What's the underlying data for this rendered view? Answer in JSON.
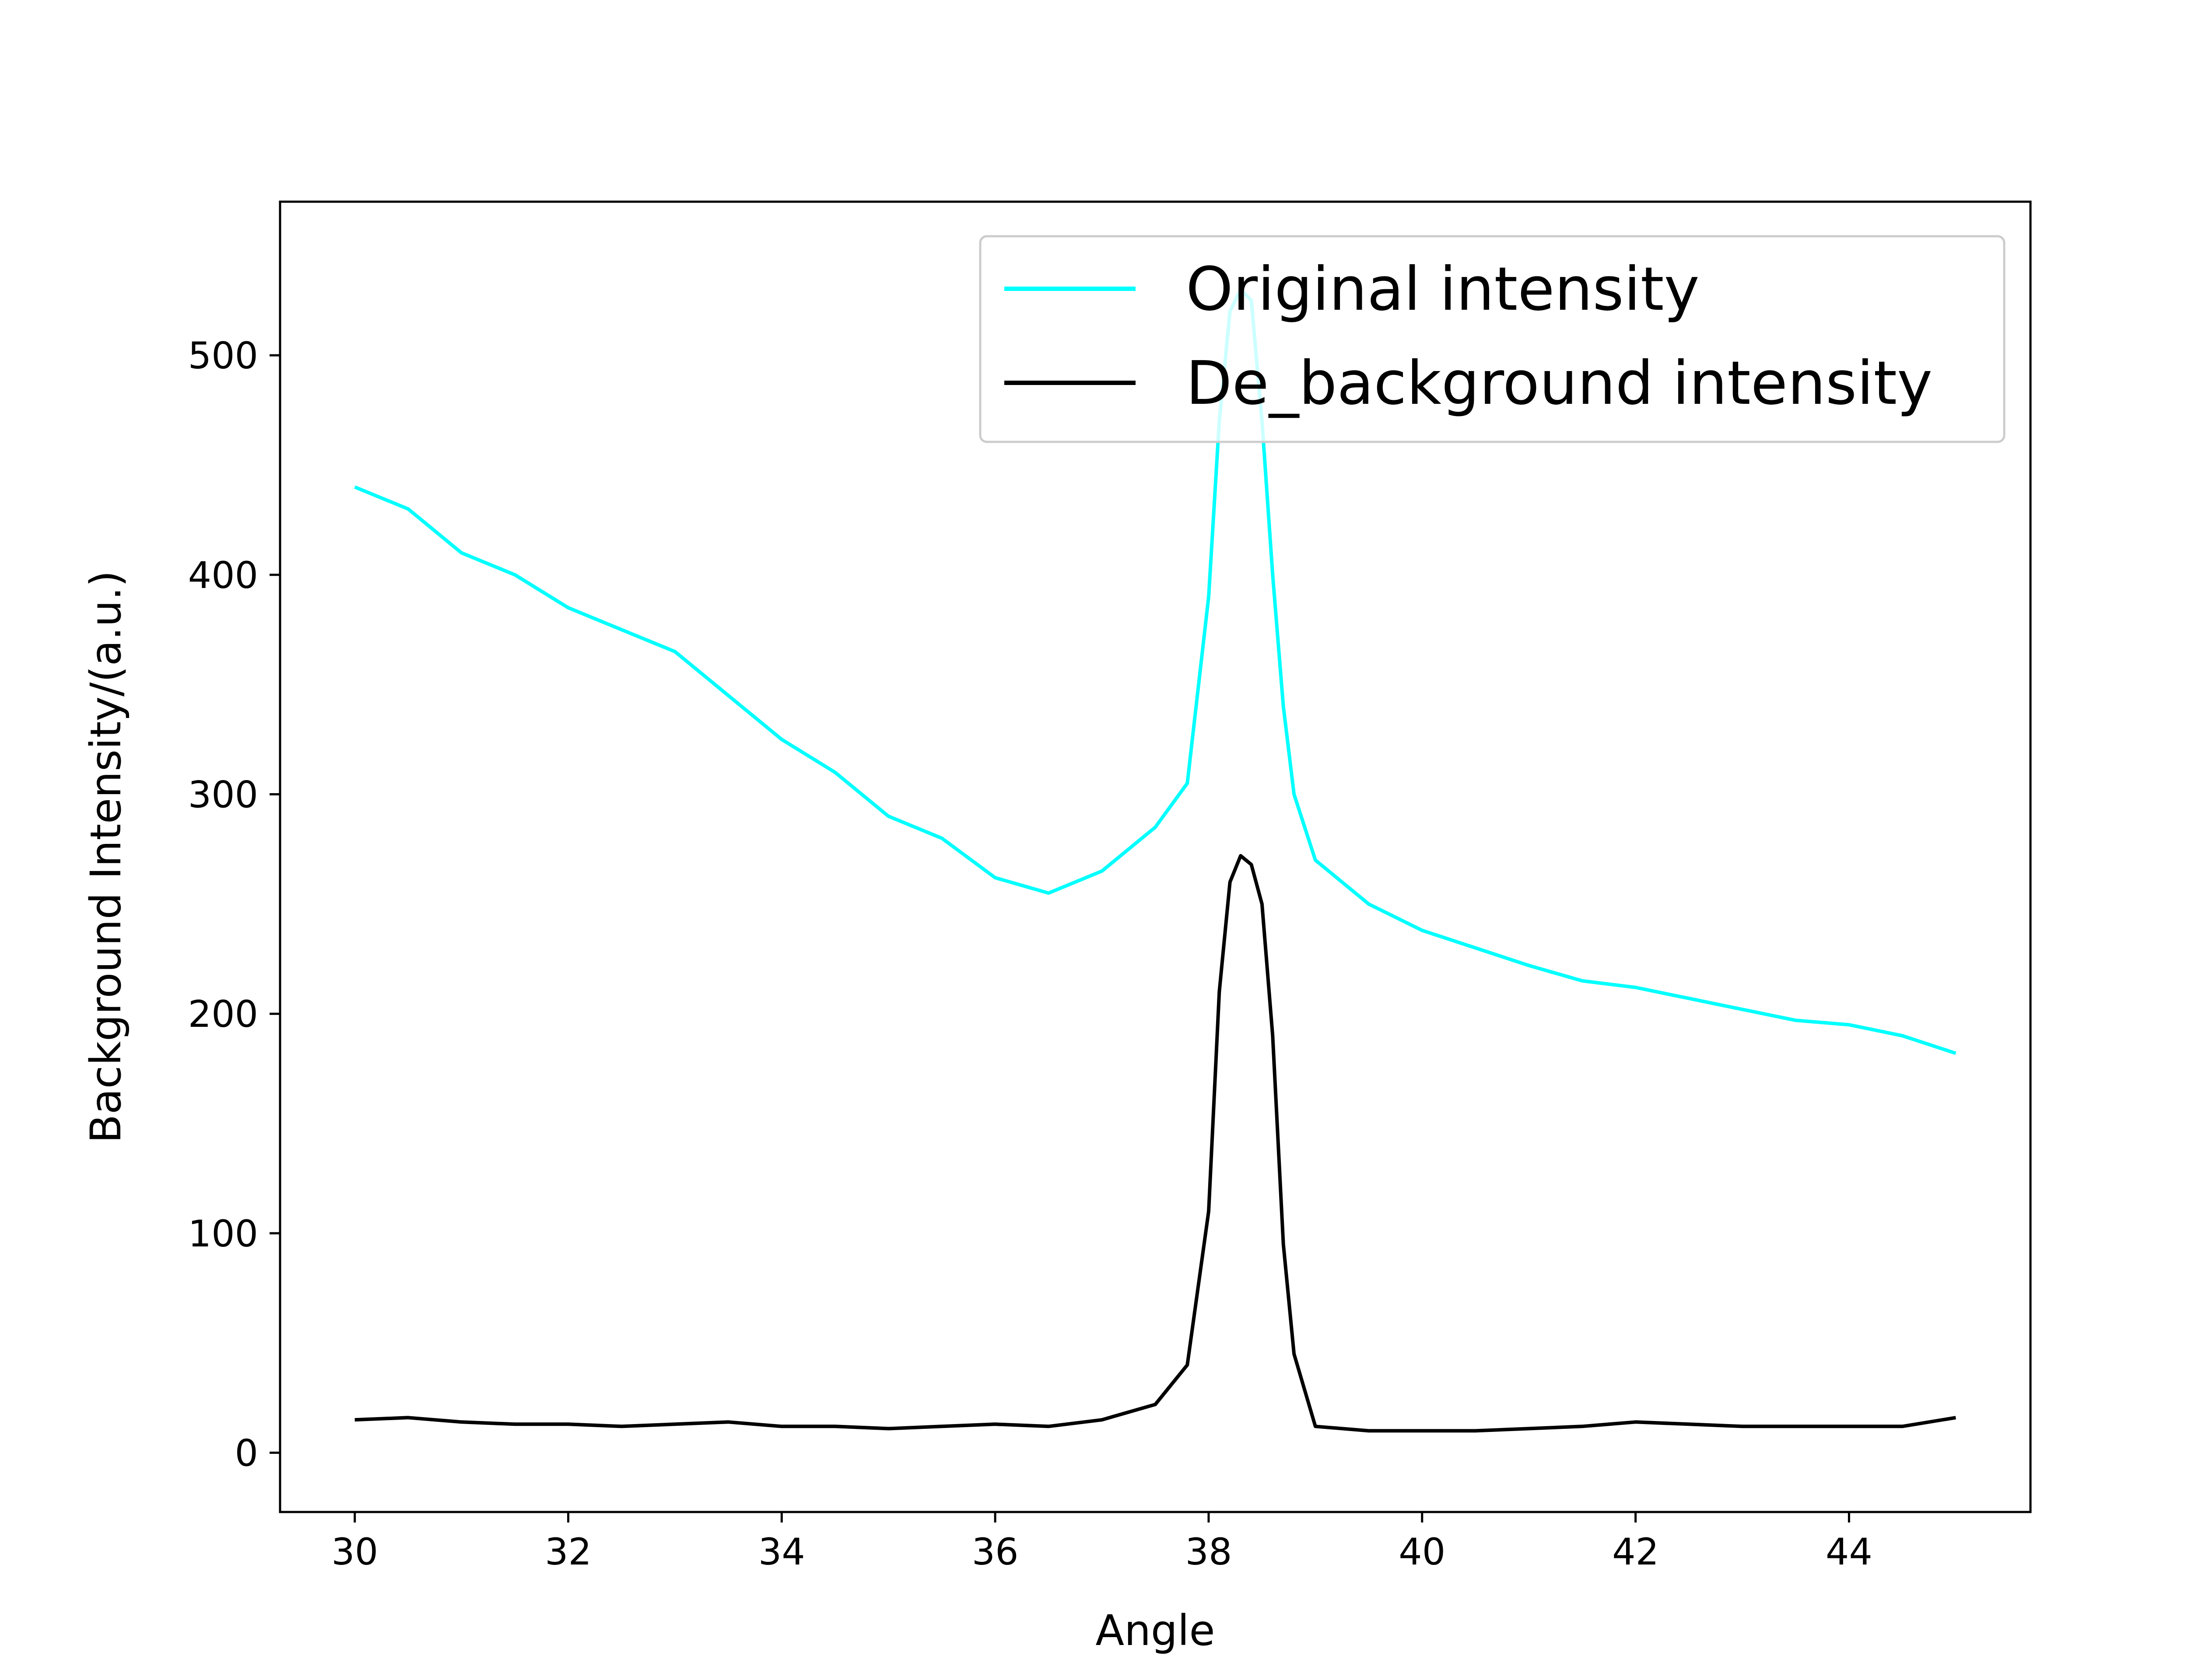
{
  "chart_data": {
    "type": "line",
    "title": "",
    "xlabel": "Angle",
    "ylabel": "Background Intensity/(a.u.)",
    "xlim": [
      29.3,
      45.7
    ],
    "ylim": [
      -27,
      570
    ],
    "xticks": [
      30,
      32,
      34,
      36,
      38,
      40,
      42,
      44
    ],
    "yticks": [
      0,
      100,
      200,
      300,
      400,
      500
    ],
    "grid": false,
    "legend_position": "top-right",
    "x": [
      30.0,
      30.5,
      31.0,
      31.5,
      32.0,
      32.5,
      33.0,
      33.5,
      34.0,
      34.5,
      35.0,
      35.5,
      36.0,
      36.5,
      37.0,
      37.5,
      37.8,
      38.0,
      38.1,
      38.2,
      38.3,
      38.4,
      38.5,
      38.6,
      38.7,
      38.8,
      39.0,
      39.5,
      40.0,
      40.5,
      41.0,
      41.5,
      42.0,
      42.5,
      43.0,
      43.5,
      44.0,
      44.5,
      45.0
    ],
    "series": [
      {
        "name": "Original intensity",
        "color": "#00ffff",
        "values": [
          440,
          430,
          410,
          400,
          385,
          375,
          365,
          345,
          325,
          310,
          290,
          280,
          262,
          255,
          265,
          285,
          305,
          390,
          470,
          520,
          530,
          525,
          470,
          400,
          340,
          300,
          270,
          250,
          238,
          230,
          222,
          215,
          212,
          207,
          202,
          197,
          195,
          190,
          182
        ]
      },
      {
        "name": "De_background intensity",
        "color": "#000000",
        "values": [
          15,
          16,
          14,
          13,
          13,
          12,
          13,
          14,
          12,
          12,
          11,
          12,
          13,
          12,
          15,
          22,
          40,
          110,
          210,
          260,
          272,
          268,
          250,
          190,
          95,
          45,
          12,
          10,
          10,
          10,
          11,
          12,
          14,
          13,
          12,
          12,
          12,
          12,
          16
        ]
      }
    ]
  }
}
